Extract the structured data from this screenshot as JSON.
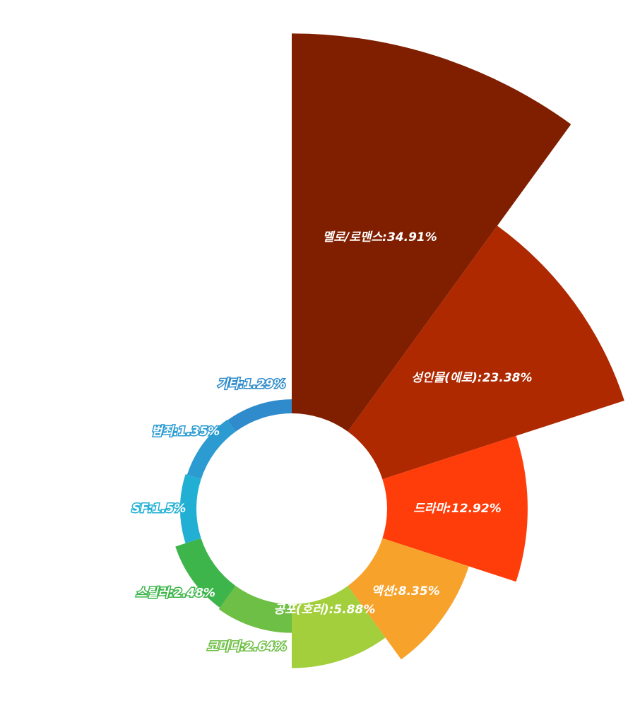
{
  "chart_data": {
    "type": "rose",
    "categories": [
      "멜로/로맨스",
      "성인물(에로)",
      "드라마",
      "액션",
      "공포(호러)",
      "코미디",
      "스릴러",
      "SF",
      "범죄",
      "기타"
    ],
    "values": [
      34.91,
      23.38,
      12.92,
      8.35,
      5.88,
      2.64,
      2.48,
      1.5,
      1.35,
      1.29
    ],
    "value_labels": [
      "멜로/로맨스:34.91%",
      "성인물(에로):23.38%",
      "드라마:12.92%",
      "액션:8.35%",
      "공포(호러):5.88%",
      "코미디:2.64%",
      "스릴러:2.48%",
      "SF:1.5%",
      "범죄:1.35%",
      "기타:1.29%"
    ],
    "colors": [
      "#7f1f00",
      "#ae2800",
      "#ff3d0a",
      "#f7a22b",
      "#a2cf3b",
      "#6ebf45",
      "#3db54a",
      "#21b0d4",
      "#2b9bd1",
      "#2f8bcb"
    ]
  }
}
